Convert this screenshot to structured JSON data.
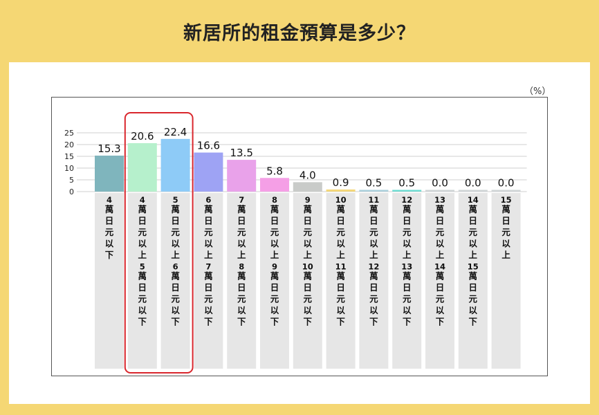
{
  "page": {
    "title": "新居所的租金預算是多少？",
    "unit": "（%）"
  },
  "colors": {
    "background": "#f5d774",
    "highlight_border": "#d9262c",
    "label_band": "#e6e6e6",
    "grid": "#cfcfcf"
  },
  "chart_data": {
    "type": "bar",
    "title": "新居所的租金預算是多少？",
    "ylabel": "（%）",
    "xlabel": "",
    "ylim": [
      0,
      25
    ],
    "yticks": [
      0,
      5,
      10,
      15,
      20,
      25
    ],
    "grid": true,
    "categories": [
      "4 萬日元以下",
      "4 萬日元以上 5 萬日元以下",
      "5 萬日元以上 6 萬日元以下",
      "6 萬日元以上 7 萬日元以下",
      "7 萬日元以上 8 萬日元以下",
      "8 萬日元以上 9 萬日元以下",
      "9 萬日元以上 10 萬日元以下",
      "10 萬日元以上 11 萬日元以下",
      "11 萬日元以上 12 萬日元以下",
      "12 萬日元以上 13 萬日元以下",
      "13 萬日元以上 14 萬日元以下",
      "14 萬日元以上 15 萬日元以下",
      "15 萬日元以上"
    ],
    "values": [
      15.3,
      20.6,
      22.4,
      16.6,
      13.5,
      5.8,
      4.0,
      0.9,
      0.5,
      0.5,
      0.0,
      0.0,
      0.0
    ],
    "value_labels": [
      "15.3",
      "20.6",
      "22.4",
      "16.6",
      "13.5",
      "5.8",
      "4.0",
      "0.9",
      "0.5",
      "0.5",
      "0.0",
      "0.0",
      "0.0"
    ],
    "bar_colors": [
      "#7fb5bd",
      "#b6f0cc",
      "#8ecbf7",
      "#9ea3f4",
      "#e9a2ea",
      "#f59fe6",
      "#c9cbc9",
      "#f3d77a",
      "#aacfdb",
      "#6fdcd2",
      "#cfd4d6",
      "#cfd4d6",
      "#cfd4d6"
    ],
    "label_lines": [
      [
        "4",
        "萬",
        "日",
        "元",
        "以",
        "下"
      ],
      [
        "4",
        "萬",
        "日",
        "元",
        "以",
        "上",
        "5",
        "萬",
        "日",
        "元",
        "以",
        "下"
      ],
      [
        "5",
        "萬",
        "日",
        "元",
        "以",
        "上",
        "6",
        "萬",
        "日",
        "元",
        "以",
        "下"
      ],
      [
        "6",
        "萬",
        "日",
        "元",
        "以",
        "上",
        "7",
        "萬",
        "日",
        "元",
        "以",
        "下"
      ],
      [
        "7",
        "萬",
        "日",
        "元",
        "以",
        "上",
        "8",
        "萬",
        "日",
        "元",
        "以",
        "下"
      ],
      [
        "8",
        "萬",
        "日",
        "元",
        "以",
        "上",
        "9",
        "萬",
        "日",
        "元",
        "以",
        "下"
      ],
      [
        "9",
        "萬",
        "日",
        "元",
        "以",
        "上",
        "10",
        "萬",
        "日",
        "元",
        "以",
        "下"
      ],
      [
        "10",
        "萬",
        "日",
        "元",
        "以",
        "上",
        "11",
        "萬",
        "日",
        "元",
        "以",
        "下"
      ],
      [
        "11",
        "萬",
        "日",
        "元",
        "以",
        "上",
        "12",
        "萬",
        "日",
        "元",
        "以",
        "下"
      ],
      [
        "12",
        "萬",
        "日",
        "元",
        "以",
        "上",
        "13",
        "萬",
        "日",
        "元",
        "以",
        "下"
      ],
      [
        "13",
        "萬",
        "日",
        "元",
        "以",
        "上",
        "14",
        "萬",
        "日",
        "元",
        "以",
        "下"
      ],
      [
        "14",
        "萬",
        "日",
        "元",
        "以",
        "上",
        "15",
        "萬",
        "日",
        "元",
        "以",
        "下"
      ],
      [
        "15",
        "萬",
        "日",
        "元",
        "以",
        "上"
      ]
    ],
    "highlighted_categories": [
      1,
      2
    ]
  }
}
